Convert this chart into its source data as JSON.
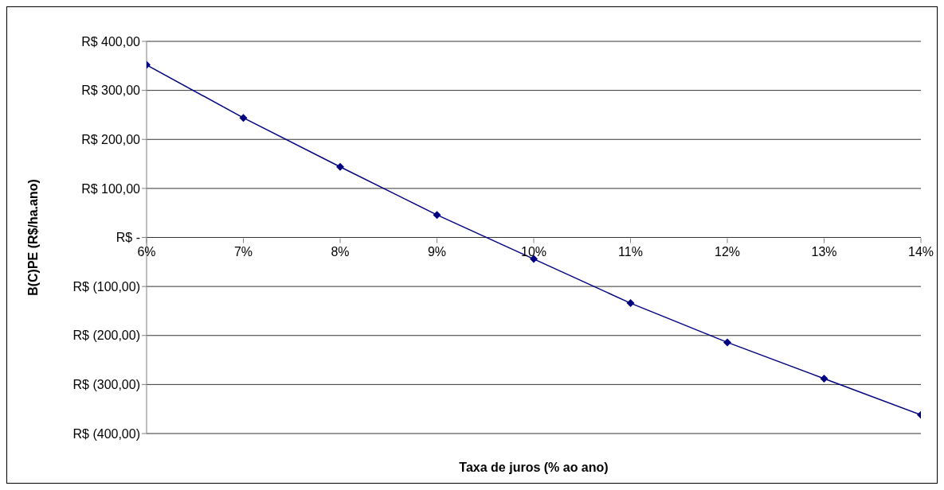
{
  "chart_data": {
    "type": "line",
    "xlabel": "Taxa de juros (% ao ano)",
    "ylabel": "B(C)PE (R$/ha.ano)",
    "x": [
      6,
      7,
      8,
      9,
      10,
      11,
      12,
      13,
      14
    ],
    "series": [
      {
        "color": "#000080",
        "values": [
          352,
          244,
          144,
          46,
          -44,
          -134,
          -214,
          -288,
          -362
        ]
      }
    ],
    "xlim": [
      6,
      14
    ],
    "xticks": [
      {
        "value": 6,
        "label": "6%"
      },
      {
        "value": 7,
        "label": "7%"
      },
      {
        "value": 8,
        "label": "8%"
      },
      {
        "value": 9,
        "label": "9%"
      },
      {
        "value": 10,
        "label": "10%"
      },
      {
        "value": 11,
        "label": "11%"
      },
      {
        "value": 12,
        "label": "12%"
      },
      {
        "value": 13,
        "label": "13%"
      },
      {
        "value": 14,
        "label": "14%"
      }
    ],
    "ylim": [
      -400,
      400
    ],
    "yticks": [
      {
        "value": -400,
        "label": "R$ (400,00)"
      },
      {
        "value": -300,
        "label": "R$ (300,00)"
      },
      {
        "value": -200,
        "label": "R$ (200,00)"
      },
      {
        "value": -100,
        "label": "R$ (100,00)"
      },
      {
        "value": 0,
        "label": "R$ -"
      },
      {
        "value": 100,
        "label": "R$ 100,00"
      },
      {
        "value": 200,
        "label": "R$ 200,00"
      },
      {
        "value": 300,
        "label": "R$ 300,00"
      },
      {
        "value": 400,
        "label": "R$ 400,00"
      }
    ],
    "grid": "y",
    "marker": "diamond",
    "line_style": "solid"
  }
}
